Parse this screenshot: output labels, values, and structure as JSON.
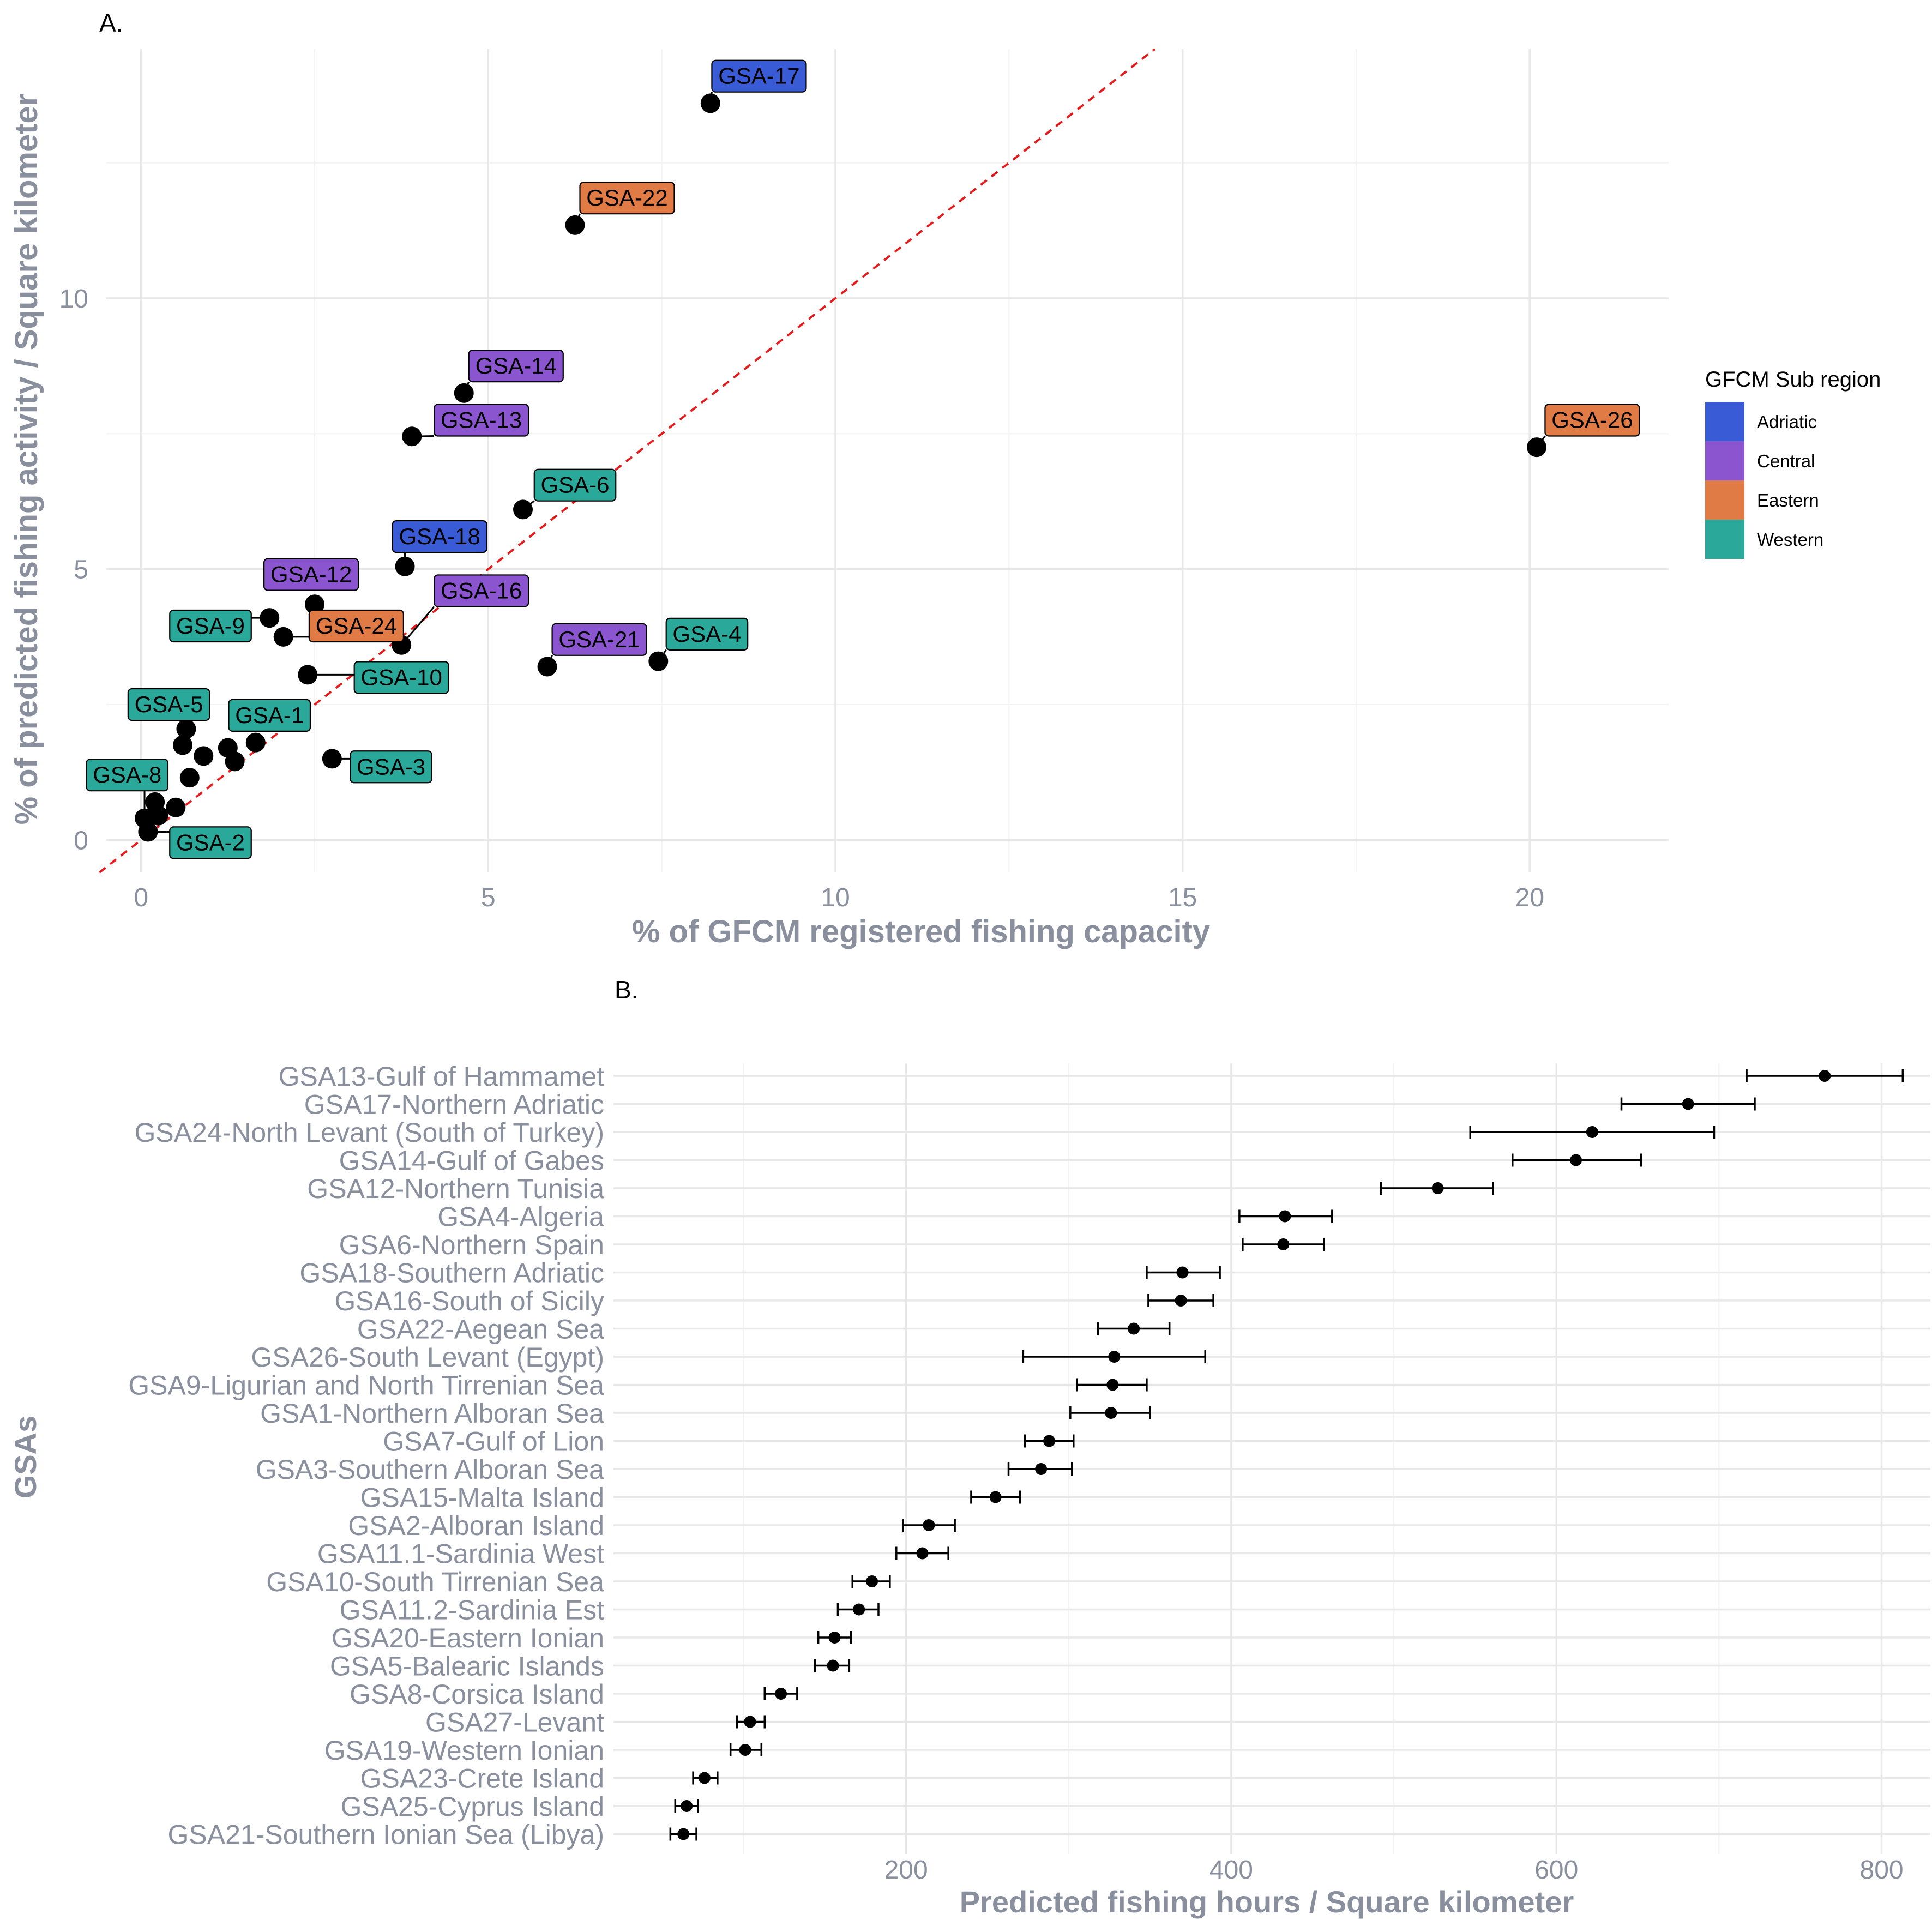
{
  "panels": {
    "a_label": "A.",
    "b_label": "B."
  },
  "chart_data": [
    {
      "type": "scatter",
      "panel": "A.",
      "xlabel": "% of GFCM registered fishing capacity",
      "ylabel": "% of predicted fishing activity / Square kilometer",
      "xlim": [
        -0.5,
        22
      ],
      "ylim": [
        -0.6,
        14.6
      ],
      "x_ticks": [
        0,
        5,
        10,
        15,
        20
      ],
      "y_ticks": [
        0,
        5,
        10
      ],
      "grid": true,
      "reference_line": {
        "type": "identity",
        "color": "#e41a1c",
        "style": "dashed"
      },
      "legend": {
        "title": "GFCM Sub region",
        "placement": "right",
        "entries": [
          {
            "name": "Adriatic",
            "color": "#3a5bd6"
          },
          {
            "name": "Central",
            "color": "#8a55cf"
          },
          {
            "name": "Eastern",
            "color": "#e07b45"
          },
          {
            "name": "Western",
            "color": "#2aa99b"
          }
        ]
      },
      "points": [
        {
          "x": 8.2,
          "y": 13.6,
          "label": "GSA-17",
          "region": "Adriatic",
          "lx": 8.9,
          "ly": 14.1
        },
        {
          "x": 6.25,
          "y": 11.35,
          "label": "GSA-22",
          "region": "Eastern",
          "lx": 7.0,
          "ly": 11.85
        },
        {
          "x": 4.65,
          "y": 8.25,
          "label": "GSA-14",
          "region": "Central",
          "lx": 5.4,
          "ly": 8.75
        },
        {
          "x": 3.9,
          "y": 7.45,
          "label": "GSA-13",
          "region": "Central",
          "lx": 4.9,
          "ly": 7.75
        },
        {
          "x": 5.5,
          "y": 6.1,
          "label": "GSA-6",
          "region": "Western",
          "lx": 6.25,
          "ly": 6.55
        },
        {
          "x": 3.8,
          "y": 5.05,
          "label": "GSA-18",
          "region": "Adriatic",
          "lx": 4.3,
          "ly": 5.6
        },
        {
          "x": 2.5,
          "y": 4.35,
          "label": "GSA-12",
          "region": "Central",
          "lx": 2.45,
          "ly": 4.9
        },
        {
          "x": 3.75,
          "y": 3.6,
          "label": "GSA-16",
          "region": "Central",
          "lx": 4.9,
          "ly": 4.6
        },
        {
          "x": 1.85,
          "y": 4.1,
          "label": "GSA-9",
          "region": "Western",
          "lx": 1.0,
          "ly": 3.95
        },
        {
          "x": 2.05,
          "y": 3.75,
          "label": "GSA-24",
          "region": "Eastern",
          "lx": 3.1,
          "ly": 3.95
        },
        {
          "x": 2.4,
          "y": 3.05,
          "label": "GSA-10",
          "region": "Western",
          "lx": 3.75,
          "ly": 3.0
        },
        {
          "x": 5.85,
          "y": 3.2,
          "label": "GSA-21",
          "region": "Central",
          "lx": 6.6,
          "ly": 3.7
        },
        {
          "x": 7.45,
          "y": 3.3,
          "label": "GSA-4",
          "region": "Western",
          "lx": 8.15,
          "ly": 3.8
        },
        {
          "x": 20.1,
          "y": 7.25,
          "label": "GSA-26",
          "region": "Eastern",
          "lx": 20.9,
          "ly": 7.75
        },
        {
          "x": 0.65,
          "y": 2.05,
          "label": "GSA-5",
          "region": "Western",
          "lx": 0.4,
          "ly": 2.5
        },
        {
          "x": 1.65,
          "y": 1.8,
          "label": "GSA-1",
          "region": "Western",
          "lx": 1.85,
          "ly": 2.3
        },
        {
          "x": 2.75,
          "y": 1.5,
          "label": "GSA-3",
          "region": "Western",
          "lx": 3.6,
          "ly": 1.35
        },
        {
          "x": 0.05,
          "y": 0.4,
          "label": "GSA-8",
          "region": "Western",
          "lx": -0.2,
          "ly": 1.2
        },
        {
          "x": 0.1,
          "y": 0.15,
          "label": "GSA-2",
          "region": "Western",
          "lx": 1.0,
          "ly": -0.05
        },
        {
          "x": 0.6,
          "y": 1.75,
          "label": "",
          "region": "",
          "lx": null,
          "ly": null
        },
        {
          "x": 0.9,
          "y": 1.55,
          "label": "",
          "region": "",
          "lx": null,
          "ly": null
        },
        {
          "x": 1.25,
          "y": 1.7,
          "label": "",
          "region": "",
          "lx": null,
          "ly": null
        },
        {
          "x": 1.35,
          "y": 1.45,
          "label": "",
          "region": "",
          "lx": null,
          "ly": null
        },
        {
          "x": 0.7,
          "y": 1.15,
          "label": "",
          "region": "",
          "lx": null,
          "ly": null
        },
        {
          "x": 0.2,
          "y": 0.7,
          "label": "",
          "region": "",
          "lx": null,
          "ly": null
        },
        {
          "x": 0.5,
          "y": 0.6,
          "label": "",
          "region": "",
          "lx": null,
          "ly": null
        },
        {
          "x": 0.25,
          "y": 0.45,
          "label": "",
          "region": "",
          "lx": null,
          "ly": null
        }
      ]
    },
    {
      "type": "dot-errorbar",
      "panel": "B.",
      "xlabel": "Predicted fishing hours / Square kilometer",
      "ylabel": "GSAs",
      "xlim": [
        20,
        830
      ],
      "x_ticks": [
        200,
        400,
        600,
        800
      ],
      "grid": true,
      "rows": [
        {
          "name": "GSA13-Gulf of Hammamet",
          "value": 765,
          "low": 717,
          "high": 813
        },
        {
          "name": "GSA17-Northern Adriatic",
          "value": 681,
          "low": 640,
          "high": 722
        },
        {
          "name": "GSA24-North Levant (South of Turkey)",
          "value": 622,
          "low": 547,
          "high": 697
        },
        {
          "name": "GSA14-Gulf of Gabes",
          "value": 612,
          "low": 573,
          "high": 652
        },
        {
          "name": "GSA12-Northern Tunisia",
          "value": 527,
          "low": 492,
          "high": 561
        },
        {
          "name": "GSA4-Algeria",
          "value": 433,
          "low": 405,
          "high": 462
        },
        {
          "name": "GSA6-Northern Spain",
          "value": 432,
          "low": 407,
          "high": 457
        },
        {
          "name": "GSA18-Southern Adriatic",
          "value": 370,
          "low": 348,
          "high": 393
        },
        {
          "name": "GSA16-South of Sicily",
          "value": 369,
          "low": 349,
          "high": 389
        },
        {
          "name": "GSA22-Aegean Sea",
          "value": 340,
          "low": 318,
          "high": 362
        },
        {
          "name": "GSA26-South Levant (Egypt)",
          "value": 328,
          "low": 272,
          "high": 384
        },
        {
          "name": "GSA9-Ligurian and North Tirrenian Sea",
          "value": 327,
          "low": 305,
          "high": 348
        },
        {
          "name": "GSA1-Northern Alboran Sea",
          "value": 326,
          "low": 301,
          "high": 350
        },
        {
          "name": "GSA7-Gulf of Lion",
          "value": 288,
          "low": 273,
          "high": 303
        },
        {
          "name": "GSA3-Southern Alboran Sea",
          "value": 283,
          "low": 263,
          "high": 302
        },
        {
          "name": "GSA15-Malta Island",
          "value": 255,
          "low": 240,
          "high": 270
        },
        {
          "name": "GSA2-Alboran Island",
          "value": 214,
          "low": 198,
          "high": 230
        },
        {
          "name": "GSA11.1-Sardinia West",
          "value": 210,
          "low": 194,
          "high": 226
        },
        {
          "name": "GSA10-South Tirrenian Sea",
          "value": 179,
          "low": 167,
          "high": 190
        },
        {
          "name": "GSA11.2-Sardinia Est",
          "value": 171,
          "low": 158,
          "high": 183
        },
        {
          "name": "GSA20-Eastern Ionian",
          "value": 156,
          "low": 146,
          "high": 166
        },
        {
          "name": "GSA5-Balearic Islands",
          "value": 155,
          "low": 144,
          "high": 165
        },
        {
          "name": "GSA8-Corsica Island",
          "value": 123,
          "low": 113,
          "high": 133
        },
        {
          "name": "GSA27-Levant",
          "value": 104,
          "low": 96,
          "high": 113
        },
        {
          "name": "GSA19-Western Ionian",
          "value": 101,
          "low": 92,
          "high": 111
        },
        {
          "name": "GSA23-Crete Island",
          "value": 76,
          "low": 69,
          "high": 84
        },
        {
          "name": "GSA25-Cyprus Island",
          "value": 65,
          "low": 58,
          "high": 72
        },
        {
          "name": "GSA21-Southern Ionian Sea (Libya)",
          "value": 63,
          "low": 55,
          "high": 71
        }
      ]
    }
  ]
}
